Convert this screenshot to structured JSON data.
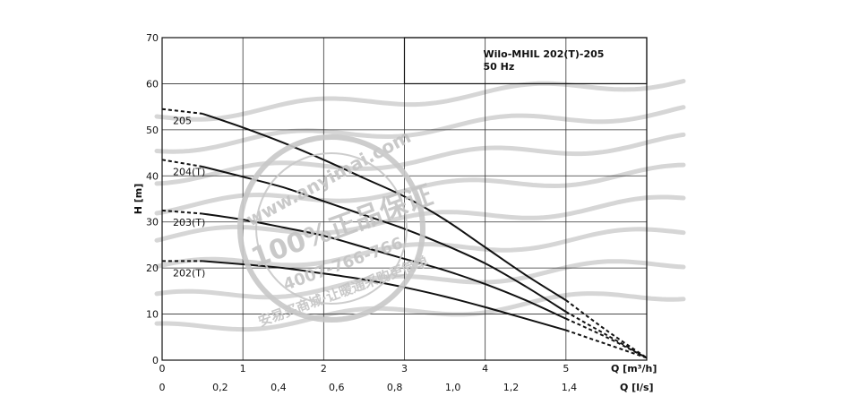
{
  "chart_data": {
    "type": "line",
    "title_lines": [
      "Wilo-MHIL 202(T)-205",
      "50 Hz"
    ],
    "xlabel": "Q [m³/h]",
    "xlabel2": "Q [l/s]",
    "ylabel": "H [m]",
    "xlim": [
      0,
      6
    ],
    "ylim": [
      0,
      70
    ],
    "x_ticks": [
      "0",
      "1",
      "2",
      "3",
      "4",
      "5"
    ],
    "x2_ticks": [
      {
        "v": 0,
        "label": "0"
      },
      {
        "v": 0.2,
        "label": "0,2"
      },
      {
        "v": 0.4,
        "label": "0,4"
      },
      {
        "v": 0.6,
        "label": "0,6"
      },
      {
        "v": 0.8,
        "label": "0,8"
      },
      {
        "v": 1.0,
        "label": "1,0"
      },
      {
        "v": 1.2,
        "label": "1,2"
      },
      {
        "v": 1.4,
        "label": "1,4"
      }
    ],
    "y_ticks": [
      "0",
      "10",
      "20",
      "30",
      "40",
      "50",
      "60",
      "70"
    ],
    "grid": true,
    "series": [
      {
        "name": "205",
        "points": [
          [
            0,
            54.5
          ],
          [
            0.5,
            53.5
          ],
          [
            1,
            50.5
          ],
          [
            1.5,
            47.2
          ],
          [
            2,
            43.5
          ],
          [
            2.5,
            39.5
          ],
          [
            3,
            35.5
          ],
          [
            3.5,
            30.5
          ],
          [
            4,
            24.5
          ],
          [
            4.5,
            18.5
          ],
          [
            5,
            13
          ],
          [
            5.5,
            6.5
          ],
          [
            6,
            0.5
          ]
        ],
        "solid_range": [
          0.5,
          5
        ]
      },
      {
        "name": "204(T)",
        "points": [
          [
            0,
            43.5
          ],
          [
            0.5,
            42
          ],
          [
            1,
            39.8
          ],
          [
            1.5,
            37.5
          ],
          [
            2,
            34.5
          ],
          [
            2.5,
            31.5
          ],
          [
            3,
            28.5
          ],
          [
            3.5,
            25
          ],
          [
            4,
            21
          ],
          [
            4.5,
            16
          ],
          [
            5,
            10.5
          ],
          [
            5.5,
            5.5
          ],
          [
            6,
            0.5
          ]
        ],
        "solid_range": [
          0.5,
          5
        ]
      },
      {
        "name": "203(T)",
        "points": [
          [
            0,
            32.5
          ],
          [
            0.5,
            31.8
          ],
          [
            1,
            30.5
          ],
          [
            1.5,
            28.8
          ],
          [
            2,
            27
          ],
          [
            2.5,
            24.5
          ],
          [
            3,
            22
          ],
          [
            3.5,
            19.5
          ],
          [
            4,
            16.5
          ],
          [
            4.5,
            13
          ],
          [
            5,
            9
          ],
          [
            5.5,
            5
          ],
          [
            6,
            0.5
          ]
        ],
        "solid_range": [
          0.5,
          5
        ]
      },
      {
        "name": "202(T)",
        "points": [
          [
            0,
            21.5
          ],
          [
            0.5,
            21.5
          ],
          [
            1,
            20.8
          ],
          [
            1.5,
            20
          ],
          [
            2,
            18.8
          ],
          [
            2.5,
            17.5
          ],
          [
            3,
            15.8
          ],
          [
            3.5,
            13.8
          ],
          [
            4,
            11.5
          ],
          [
            4.5,
            9
          ],
          [
            5,
            6.5
          ],
          [
            5.5,
            3.5
          ],
          [
            6,
            0.5
          ]
        ],
        "solid_range": [
          0.5,
          5
        ]
      }
    ]
  },
  "watermark": {
    "url": "www.anyimai.com",
    "slogan": "100%正品保证",
    "phone": "4007-766-766",
    "tagline": "安易买商城·让暖通采购更简单"
  }
}
